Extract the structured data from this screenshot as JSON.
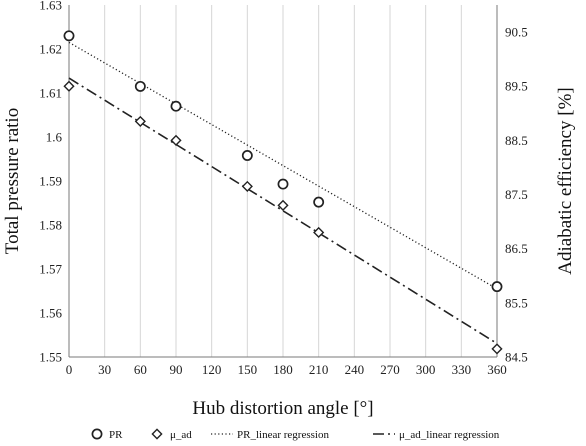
{
  "chart_data": {
    "type": "scatter",
    "xlabel": "Hub distortion angle [°]",
    "ylabel": "Total pressure ratio",
    "y2label": "Adiabatic efficiency [%]",
    "xlim": [
      0,
      360
    ],
    "ylim": [
      1.55,
      1.63
    ],
    "y2lim": [
      84.5,
      91.0
    ],
    "xticks": [
      "0",
      "30",
      "60",
      "90",
      "120",
      "150",
      "180",
      "210",
      "240",
      "270",
      "300",
      "330",
      "360"
    ],
    "yticks": [
      "1.55",
      "1.56",
      "1.57",
      "1.58",
      "1.59",
      "1.6",
      "1.61",
      "1.62",
      "1.63"
    ],
    "y2ticks": [
      "84.5",
      "85.5",
      "86.5",
      "87.5",
      "88.5",
      "89.5",
      "90.5"
    ],
    "grid": "vertical",
    "legend_position": "bottom",
    "series": [
      {
        "name": "PR",
        "marker": "circle",
        "axis": "left",
        "x": [
          0,
          60,
          90,
          150,
          180,
          210,
          360
        ],
        "y": [
          1.623,
          1.6115,
          1.607,
          1.5958,
          1.5893,
          1.5852,
          1.566
        ]
      },
      {
        "name": "μ_ad",
        "marker": "diamond",
        "axis": "right",
        "x": [
          0,
          60,
          90,
          150,
          180,
          210,
          360
        ],
        "y": [
          89.5,
          88.85,
          88.5,
          87.65,
          87.3,
          86.8,
          84.65
        ]
      },
      {
        "name": "PR_linear regression",
        "line": "dotted",
        "axis": "left",
        "x": [
          0,
          360
        ],
        "y": [
          1.6215,
          1.5655
        ]
      },
      {
        "name": "μ_ad_linear regression",
        "line": "dash-dot",
        "axis": "right",
        "x": [
          0,
          360
        ],
        "y": [
          89.65,
          84.75
        ]
      }
    ]
  }
}
